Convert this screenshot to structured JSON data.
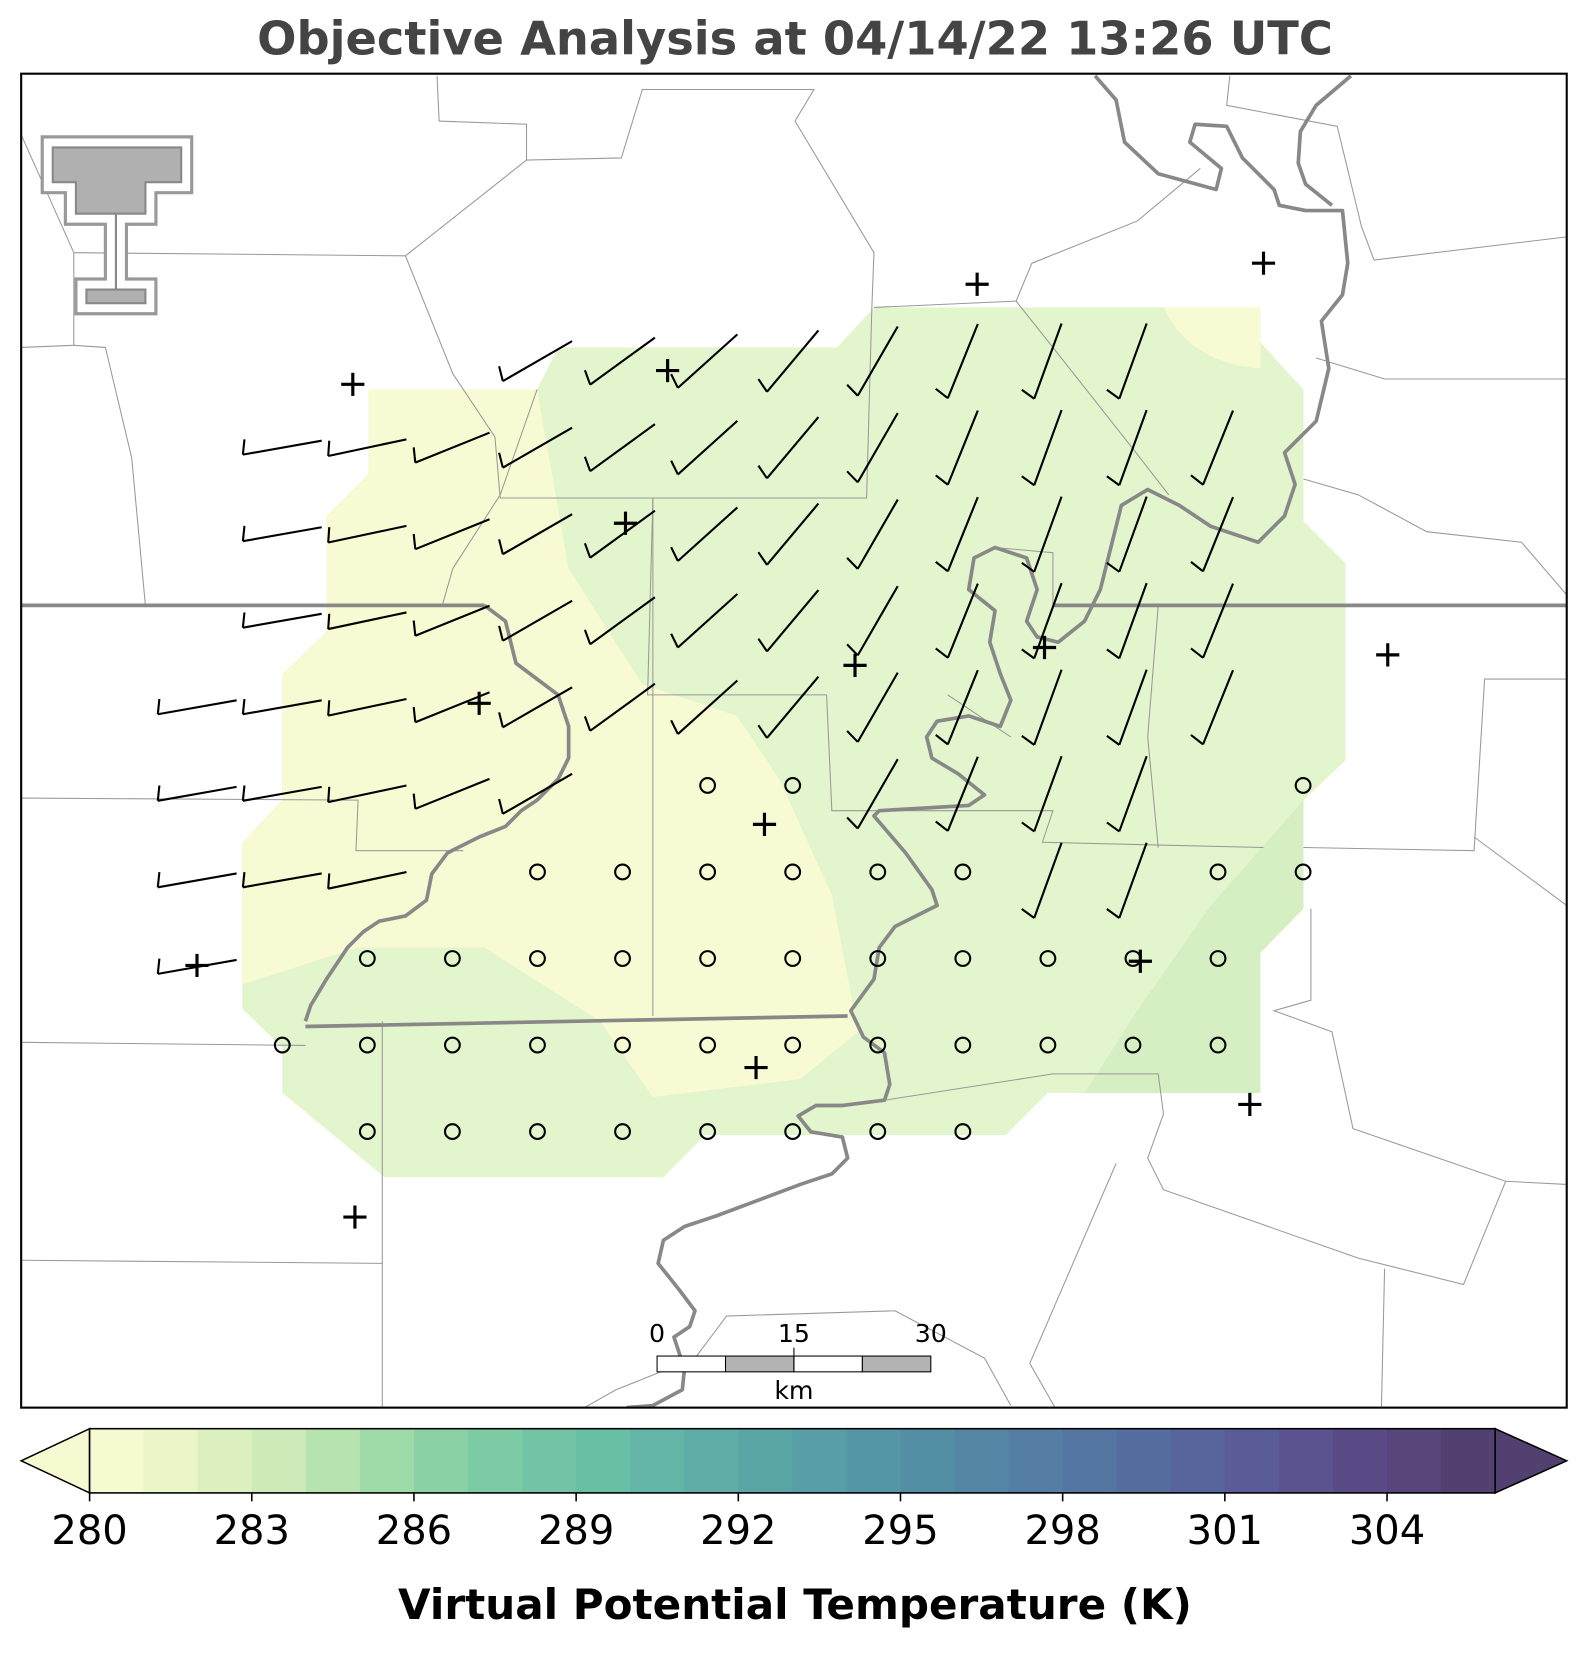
{
  "title": "Objective Analysis at 04/14/22 13:26 UTC",
  "colorbar": {
    "label": "Virtual Potential Temperature (K)",
    "vmin": 280,
    "vmax": 306,
    "ticks": [
      280,
      283,
      286,
      289,
      292,
      295,
      298,
      301,
      304
    ],
    "colors": [
      "#f7f9d0",
      "#eaf5c8",
      "#dcf0c0",
      "#cdeab8",
      "#b7e3b0",
      "#9fdaa9",
      "#8ad2a5",
      "#7ccba4",
      "#72c4a5",
      "#69bea6",
      "#63b6a7",
      "#5eaea7",
      "#5aa6a7",
      "#579ea7",
      "#5596a6",
      "#548ea5",
      "#5386a4",
      "#547ea3",
      "#5576a1",
      "#566e9f",
      "#58659c",
      "#5a5c97",
      "#5b5390",
      "#5a4b86",
      "#57457b",
      "#524070"
    ]
  },
  "scale_bar": {
    "labels": [
      "0",
      "15",
      "30"
    ],
    "unit": "km"
  }
}
